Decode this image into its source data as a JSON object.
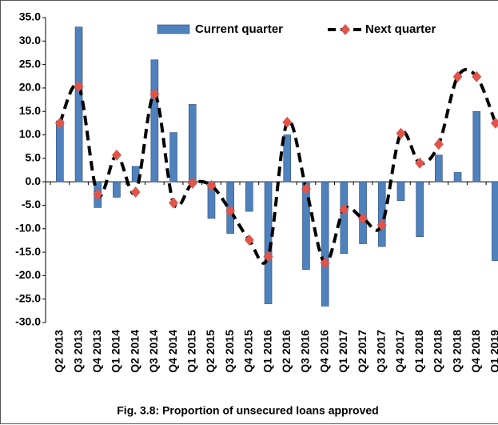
{
  "chart_data": {
    "type": "bar_line",
    "caption": "Fig. 3.8: Proportion of unsecured loans approved",
    "categories": [
      "Q2 2013",
      "Q3 2013",
      "Q4 2013",
      "Q1 2014",
      "Q2 2014",
      "Q3 2014",
      "Q4 2014",
      "Q1 2015",
      "Q2 2015",
      "Q3 2015",
      "Q4 2015",
      "Q1 2016",
      "Q2 2016",
      "Q3 2016",
      "Q4 2016",
      "Q1 2017",
      "Q2 2017",
      "Q3 2017",
      "Q4 2017",
      "Q1 2018",
      "Q2 2018",
      "Q3 2018",
      "Q4 2018",
      "Q1 2019"
    ],
    "series": [
      {
        "name": "Current quarter",
        "type": "bar",
        "color": "#4f81bd",
        "values": [
          13,
          33,
          -5.5,
          -3.3,
          3.3,
          26,
          10.5,
          16.5,
          -7.8,
          -11,
          -6.3,
          -26,
          10,
          -18.7,
          -26.5,
          -15.3,
          -13.2,
          -13.8,
          -4,
          -11.7,
          5.7,
          2,
          15,
          -16.8
        ]
      },
      {
        "name": "Next quarter",
        "type": "line",
        "color": "#000000",
        "marker_color": "#e0544a",
        "values": [
          12.5,
          20.3,
          -2.7,
          5.7,
          -2.2,
          18.7,
          -4.5,
          -0.3,
          -0.8,
          -6.2,
          -12.4,
          -15.9,
          12.7,
          -1.5,
          -17.3,
          -5.9,
          -7.8,
          -9.2,
          10.3,
          4.0,
          8.0,
          22.4,
          22.4,
          12.5
        ]
      }
    ],
    "ylim": [
      -30,
      35
    ],
    "yticks": [
      {
        "value": -30,
        "label": "-30.0"
      },
      {
        "value": -25,
        "label": "-25.0"
      },
      {
        "value": -20,
        "label": "-20.0"
      },
      {
        "value": -15,
        "label": "-15.0"
      },
      {
        "value": -10,
        "label": "-10.0"
      },
      {
        "value": -5,
        "label": "-5.0"
      },
      {
        "value": 0,
        "label": "0.0"
      },
      {
        "value": 5,
        "label": "5.0"
      },
      {
        "value": 10,
        "label": "10.0"
      },
      {
        "value": 15,
        "label": "15.0"
      },
      {
        "value": 20,
        "label": "20.0"
      },
      {
        "value": 25,
        "label": "25.0"
      },
      {
        "value": 30,
        "label": "30.0"
      },
      {
        "value": 35,
        "label": "35.0"
      }
    ],
    "grid": false
  }
}
